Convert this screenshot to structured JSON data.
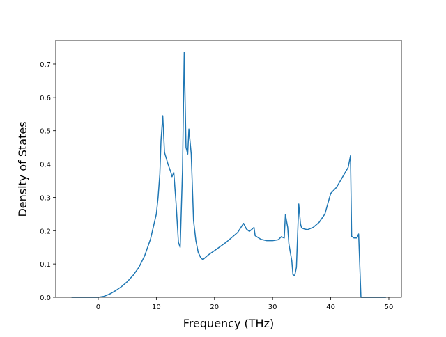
{
  "chart_data": {
    "type": "line",
    "xlabel": "Frequency (THz)",
    "ylabel": "Density of States",
    "color": "#1f77b4",
    "x": [
      -4.6,
      0,
      1,
      2,
      3,
      4,
      5,
      6,
      7,
      8,
      9,
      10,
      10.3,
      10.6,
      10.8,
      11.1,
      11.4,
      12,
      12.5,
      12.7,
      13,
      13.4,
      13.8,
      14.1,
      14.5,
      14.8,
      15.1,
      15.4,
      15.6,
      16,
      16.4,
      16.8,
      17.2,
      17.6,
      18,
      19,
      20,
      22,
      24,
      25,
      25.5,
      26,
      26.5,
      26.8,
      27,
      28,
      29,
      30,
      31,
      31.5,
      32,
      32.2,
      32.6,
      32.8,
      33.3,
      33.5,
      33.8,
      34.1,
      34.5,
      34.8,
      35,
      35.5,
      36,
      37,
      38,
      39,
      40,
      41,
      42,
      43,
      43.4,
      43.6,
      44,
      44.5,
      44.8,
      45.2,
      49.5
    ],
    "values": [
      0,
      0,
      0.003,
      0.01,
      0.02,
      0.032,
      0.047,
      0.066,
      0.09,
      0.125,
      0.175,
      0.25,
      0.3,
      0.37,
      0.47,
      0.545,
      0.435,
      0.4,
      0.375,
      0.362,
      0.375,
      0.28,
      0.165,
      0.15,
      0.38,
      0.735,
      0.45,
      0.43,
      0.505,
      0.43,
      0.23,
      0.17,
      0.135,
      0.12,
      0.113,
      0.128,
      0.14,
      0.165,
      0.195,
      0.222,
      0.205,
      0.198,
      0.205,
      0.21,
      0.185,
      0.174,
      0.17,
      0.17,
      0.173,
      0.182,
      0.178,
      0.248,
      0.21,
      0.16,
      0.11,
      0.068,
      0.065,
      0.09,
      0.28,
      0.22,
      0.208,
      0.205,
      0.203,
      0.21,
      0.225,
      0.25,
      0.312,
      0.33,
      0.36,
      0.39,
      0.425,
      0.183,
      0.178,
      0.178,
      0.19,
      0,
      0
    ],
    "xlim": [
      -7.31,
      52.16
    ],
    "ylim": [
      0,
      0.771
    ],
    "xticks": [
      0,
      10,
      20,
      30,
      40,
      50
    ],
    "yticks": [
      {
        "value": 0,
        "label": "0.0"
      },
      0.1,
      0.2,
      0.3,
      0.4,
      0.5,
      0.6,
      0.7
    ]
  }
}
